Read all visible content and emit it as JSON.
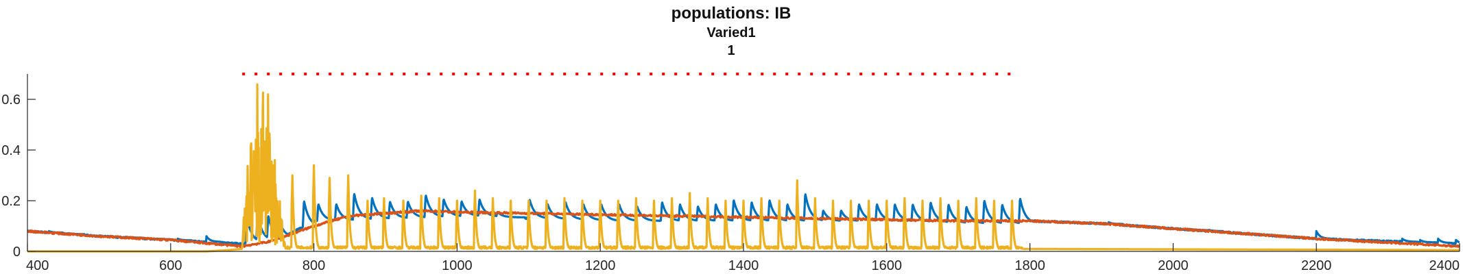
{
  "chart_data": {
    "type": "line",
    "title": "populations: IB",
    "subtitle_lines": [
      "Varied1",
      "1"
    ],
    "xlabel": "",
    "ylabel": "",
    "xlim": [
      400,
      2400
    ],
    "ylim": [
      0,
      0.7
    ],
    "grid": false,
    "xticks": [
      400,
      600,
      800,
      1000,
      1200,
      1400,
      1600,
      1800,
      2000,
      2200,
      2400
    ],
    "xtick_labels": [
      "400",
      "600",
      "800",
      "1000",
      "1200",
      "1400",
      "1600",
      "1800",
      "2000",
      "2200",
      "2400"
    ],
    "yticks": [
      0,
      0.2,
      0.4,
      0.6
    ],
    "ytick_labels": [
      "0",
      "0.2",
      "0.4",
      "0.6"
    ],
    "stimulus_marker": {
      "style": "dotted",
      "color": "#ff0000",
      "y": 0.7,
      "x_start": 700,
      "x_end": 1785
    },
    "series": [
      {
        "color": "#0072BD",
        "baseline_points": [
          [
            400,
            0.08
          ],
          [
            500,
            0.06
          ],
          [
            600,
            0.045
          ],
          [
            700,
            0.03
          ],
          [
            760,
            0.06
          ],
          [
            800,
            0.12
          ],
          [
            900,
            0.13
          ],
          [
            1000,
            0.14
          ],
          [
            1100,
            0.13
          ],
          [
            1200,
            0.12
          ],
          [
            1300,
            0.12
          ],
          [
            1400,
            0.12
          ],
          [
            1500,
            0.12
          ],
          [
            1600,
            0.12
          ],
          [
            1700,
            0.11
          ],
          [
            1790,
            0.11
          ],
          [
            1800,
            0.12
          ],
          [
            1900,
            0.11
          ],
          [
            2000,
            0.09
          ],
          [
            2100,
            0.07
          ],
          [
            2200,
            0.05
          ],
          [
            2300,
            0.04
          ],
          [
            2400,
            0.03
          ]
        ],
        "burst_times": [
          705,
          720,
          735,
          750,
          785,
          805,
          830,
          855,
          880,
          905,
          930,
          955,
          980,
          1005,
          1030,
          1055,
          1100,
          1125,
          1150,
          1175,
          1200,
          1225,
          1250,
          1285,
          1310,
          1335,
          1360,
          1385,
          1410,
          1435,
          1460,
          1485,
          1510,
          1535,
          1560,
          1585,
          1610,
          1635,
          1660,
          1685,
          1710,
          1735,
          1760,
          1785
        ],
        "burst_peaks": [
          0.16,
          0.17,
          0.16,
          0.14,
          0.22,
          0.2,
          0.2,
          0.25,
          0.23,
          0.21,
          0.21,
          0.24,
          0.22,
          0.21,
          0.22,
          0.16,
          0.22,
          0.2,
          0.21,
          0.2,
          0.2,
          0.2,
          0.19,
          0.21,
          0.2,
          0.19,
          0.2,
          0.22,
          0.21,
          0.22,
          0.2,
          0.25,
          0.17,
          0.17,
          0.2,
          0.2,
          0.2,
          0.2,
          0.21,
          0.2,
          0.19,
          0.22,
          0.2,
          0.23
        ],
        "small_event_times": [
          430,
          460,
          500,
          540,
          580,
          610,
          650,
          1910,
          2050,
          2200,
          2320,
          2345,
          2370,
          2395
        ],
        "small_event_peaks": [
          0.08,
          0.07,
          0.06,
          0.055,
          0.05,
          0.05,
          0.06,
          0.115,
          0.085,
          0.08,
          0.05,
          0.045,
          0.05,
          0.045
        ]
      },
      {
        "color": "#D95319",
        "baseline_points": [
          [
            400,
            0.08
          ],
          [
            500,
            0.06
          ],
          [
            600,
            0.045
          ],
          [
            700,
            0.02
          ],
          [
            740,
            0.04
          ],
          [
            800,
            0.1
          ],
          [
            850,
            0.14
          ],
          [
            900,
            0.15
          ],
          [
            950,
            0.16
          ],
          [
            1000,
            0.155
          ],
          [
            1100,
            0.15
          ],
          [
            1200,
            0.145
          ],
          [
            1300,
            0.14
          ],
          [
            1400,
            0.135
          ],
          [
            1500,
            0.13
          ],
          [
            1600,
            0.125
          ],
          [
            1700,
            0.12
          ],
          [
            1800,
            0.12
          ],
          [
            1900,
            0.11
          ],
          [
            2000,
            0.09
          ],
          [
            2100,
            0.07
          ],
          [
            2200,
            0.05
          ],
          [
            2300,
            0.035
          ],
          [
            2400,
            0.02
          ]
        ]
      },
      {
        "color": "#EDB120",
        "baseline_points": [
          [
            400,
            0.0
          ],
          [
            650,
            0.0
          ],
          [
            680,
            0.005
          ],
          [
            700,
            0.01
          ],
          [
            1785,
            0.01
          ],
          [
            1790,
            0.01
          ],
          [
            2400,
            0.005
          ]
        ],
        "main_burst_x": [
          700,
          760
        ],
        "main_burst_peak": 0.7,
        "spike_times": [
          770,
          800,
          822,
          848,
          875,
          898,
          925,
          950,
          975,
          1000,
          1025,
          1050,
          1075,
          1100,
          1125,
          1150,
          1175,
          1200,
          1225,
          1250,
          1275,
          1300,
          1325,
          1350,
          1375,
          1400,
          1425,
          1450,
          1475,
          1500,
          1525,
          1550,
          1575,
          1600,
          1625,
          1650,
          1675,
          1700,
          1725,
          1750,
          1775
        ],
        "spike_peaks": [
          0.3,
          0.34,
          0.29,
          0.3,
          0.2,
          0.21,
          0.2,
          0.22,
          0.21,
          0.2,
          0.24,
          0.21,
          0.2,
          0.2,
          0.2,
          0.21,
          0.2,
          0.2,
          0.2,
          0.21,
          0.2,
          0.21,
          0.23,
          0.21,
          0.2,
          0.2,
          0.21,
          0.2,
          0.28,
          0.21,
          0.2,
          0.2,
          0.2,
          0.2,
          0.21,
          0.2,
          0.21,
          0.2,
          0.21,
          0.2,
          0.2
        ]
      }
    ]
  }
}
